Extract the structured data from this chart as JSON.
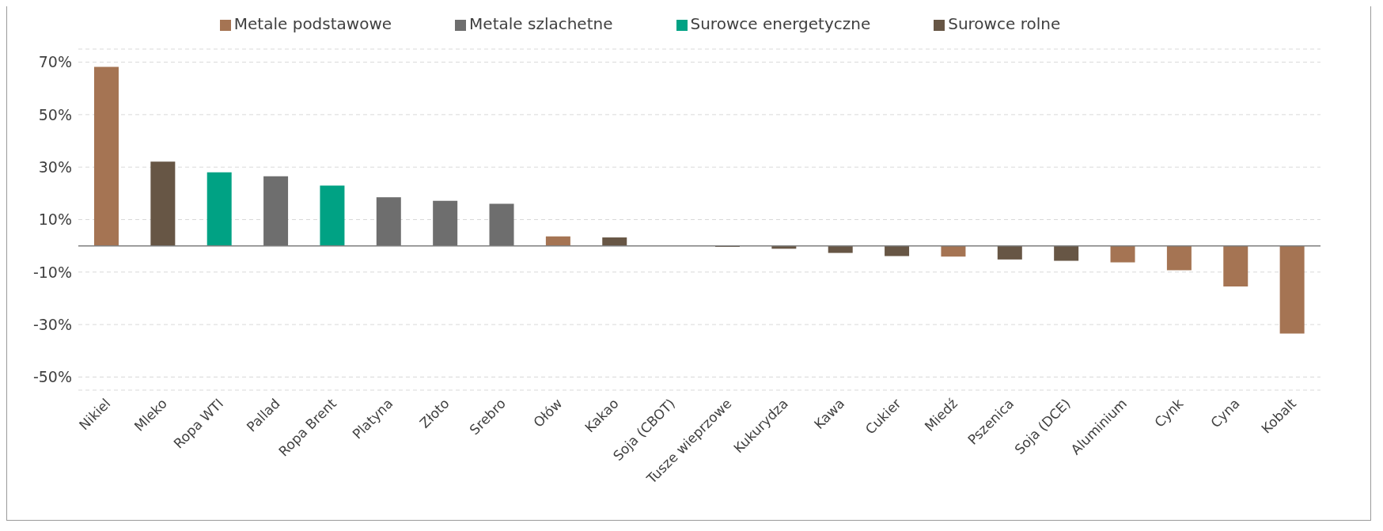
{
  "chart_data": {
    "type": "bar",
    "stacked": true,
    "categories": [
      "Nikiel",
      "Mleko",
      "Ropa WTI",
      "Pallad",
      "Ropa Brent",
      "Platyna",
      "Złoto",
      "Srebro",
      "Ołów",
      "Kakao",
      "Soja (CBOT)",
      "Tusze wieprzowe",
      "Kukurydza",
      "Kawa",
      "Cukier",
      "Miedź",
      "Pszenica",
      "Soja (DCE)",
      "Aluminium",
      "Cynk",
      "Cyna",
      "Kobalt"
    ],
    "series": [
      {
        "name": "Metale podstawowe",
        "color": "#a57453",
        "values": [
          68.2,
          null,
          null,
          null,
          null,
          null,
          null,
          null,
          3.6,
          null,
          null,
          null,
          null,
          null,
          null,
          -4.1,
          null,
          null,
          -6.3,
          -9.3,
          -15.5,
          -33.4
        ]
      },
      {
        "name": "Metale szlachetne",
        "color": "#6e6e6e",
        "values": [
          null,
          null,
          null,
          26.5,
          null,
          18.5,
          17.2,
          16.0,
          null,
          null,
          null,
          null,
          null,
          null,
          null,
          null,
          null,
          null,
          null,
          null,
          null,
          null
        ]
      },
      {
        "name": "Surowce energetyczne",
        "color": "#00a284",
        "values": [
          null,
          null,
          28.0,
          null,
          23.0,
          null,
          null,
          null,
          null,
          null,
          null,
          null,
          null,
          null,
          null,
          null,
          null,
          null,
          null,
          null,
          null,
          null
        ]
      },
      {
        "name": "Surowce rolne",
        "color": "#675645",
        "values": [
          null,
          32.1,
          null,
          null,
          null,
          null,
          null,
          null,
          null,
          3.2,
          0,
          -0.4,
          -1.1,
          -2.7,
          -3.9,
          null,
          -5.2,
          -5.7,
          null,
          null,
          null,
          null
        ]
      }
    ],
    "ylim": [
      -55,
      75
    ],
    "yticks": [
      {
        "value": 70,
        "label": "70%"
      },
      {
        "value": 50,
        "label": "50%"
      },
      {
        "value": 30,
        "label": "30%"
      },
      {
        "value": 10,
        "label": "10%"
      },
      {
        "value": -10,
        "label": "-10%"
      },
      {
        "value": -30,
        "label": "-30%"
      },
      {
        "value": -50,
        "label": "-50%"
      }
    ],
    "grid": "y",
    "legend": "top"
  }
}
